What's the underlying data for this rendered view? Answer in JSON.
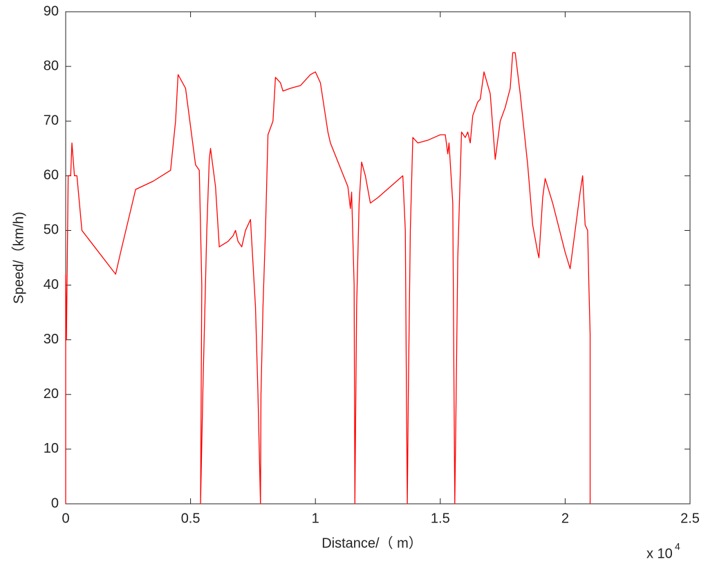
{
  "chart_data": {
    "type": "line",
    "x_label": "Distance/（ m）",
    "y_label": "Speed/（km/h)",
    "x_multiplier": {
      "base": "x 10",
      "exponent": "4"
    },
    "color": "#ff0000",
    "xlim": [
      0,
      2.5
    ],
    "xticks": [
      0,
      0.5,
      1,
      1.5,
      2,
      2.5
    ],
    "ylim": [
      0,
      90
    ],
    "yticks": [
      0,
      10,
      20,
      30,
      40,
      50,
      60,
      70,
      80,
      90
    ],
    "x": [
      0,
      0,
      0.003,
      0.01,
      0.02,
      0.025,
      0.035,
      0.045,
      0.065,
      0.2,
      0.22,
      0.28,
      0.35,
      0.42,
      0.44,
      0.45,
      0.48,
      0.52,
      0.535,
      0.545,
      0.54,
      0.55,
      0.565,
      0.575,
      0.58,
      0.6,
      0.615,
      0.65,
      0.67,
      0.68,
      0.69,
      0.705,
      0.72,
      0.74,
      0.76,
      0.77,
      0.775,
      0.78,
      0.782,
      0.79,
      0.8,
      0.81,
      0.83,
      0.84,
      0.86,
      0.87,
      0.9,
      0.94,
      0.98,
      1.0,
      1.02,
      1.05,
      1.06,
      1.13,
      1.14,
      1.145,
      1.155,
      1.158,
      1.165,
      1.175,
      1.185,
      1.2,
      1.22,
      1.25,
      1.35,
      1.36,
      1.365,
      1.368,
      1.372,
      1.38,
      1.39,
      1.41,
      1.45,
      1.5,
      1.52,
      1.53,
      1.535,
      1.55,
      1.558,
      1.562,
      1.57,
      1.585,
      1.6,
      1.61,
      1.62,
      1.63,
      1.65,
      1.66,
      1.675,
      1.7,
      1.72,
      1.74,
      1.76,
      1.78,
      1.79,
      1.8,
      1.82,
      1.85,
      1.87,
      1.89,
      1.895,
      1.91,
      1.92,
      1.95,
      2.0,
      2.02,
      2.04,
      2.06,
      2.07,
      2.08,
      2.09,
      2.095,
      2.1,
      2.1
    ],
    "values": [
      0,
      42,
      30,
      60,
      60,
      66,
      60,
      60,
      50,
      42,
      46,
      57.5,
      59,
      61,
      70,
      78.5,
      76,
      62,
      61,
      40,
      0,
      22,
      50,
      63,
      65,
      58,
      47,
      48,
      49,
      50,
      48,
      47,
      50,
      52,
      36,
      20,
      10,
      0,
      20,
      36,
      50,
      67.5,
      70,
      78,
      77,
      75.5,
      76,
      76.5,
      78.5,
      79,
      77,
      68,
      66,
      58,
      54,
      57,
      40,
      0,
      36,
      55,
      62.5,
      60,
      55,
      56,
      60,
      50,
      17,
      0,
      20,
      50,
      67,
      66,
      66.5,
      67.5,
      67.5,
      64,
      66,
      55,
      0,
      14,
      45,
      68,
      67,
      68,
      66,
      71,
      73.5,
      74,
      79,
      75,
      63,
      70,
      72.5,
      76,
      82.5,
      82.5,
      75,
      62,
      51,
      46,
      45,
      56,
      59.5,
      55,
      46,
      43,
      50,
      57,
      60,
      51,
      50,
      40,
      31,
      0
    ]
  }
}
